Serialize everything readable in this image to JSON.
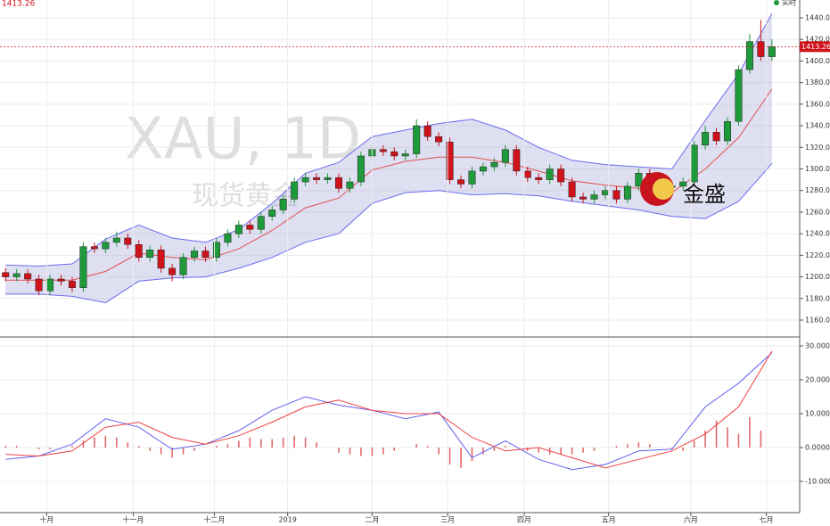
{
  "chart_data": [
    {
      "type": "candlestick",
      "title": "XAU, 1D",
      "subtitle": "现货黄金",
      "brand": "金盛",
      "status": "实时",
      "last_price": 1413.26,
      "last_price_label": "1413.26",
      "xlim": [
        -0.5,
        71.5
      ],
      "ylim": [
        1144.3,
        1456.5
      ],
      "yticks": [
        {
          "value": 1160,
          "label": "1160.00"
        },
        {
          "value": 1180,
          "label": "1180.00"
        },
        {
          "value": 1200,
          "label": "1200.00"
        },
        {
          "value": 1220,
          "label": "1220.00"
        },
        {
          "value": 1240,
          "label": "1240.00"
        },
        {
          "value": 1260,
          "label": "1260.00"
        },
        {
          "value": 1280,
          "label": "1280.00"
        },
        {
          "value": 1300,
          "label": "1300.00"
        },
        {
          "value": 1320,
          "label": "1320.00"
        },
        {
          "value": 1340,
          "label": "1340.00"
        },
        {
          "value": 1360,
          "label": "1360.00"
        },
        {
          "value": 1380,
          "label": "1380.00"
        },
        {
          "value": 1400,
          "label": "1400.00"
        },
        {
          "value": 1420,
          "label": "1420.00"
        },
        {
          "value": 1440,
          "label": "1440.00"
        }
      ],
      "grid": true,
      "up_color": "#1f9a3a",
      "down_color": "#d0121b",
      "band_color": "#6b6bf0",
      "band_fill": "#8c8cd2",
      "middle_color": "#e05050",
      "last_price_color": "#d0121b",
      "open": [
        1204,
        1200,
        1203,
        1198,
        1187,
        1198,
        1196,
        1190,
        1228,
        1226,
        1232,
        1236,
        1230,
        1218,
        1225,
        1208,
        1202,
        1218,
        1224,
        1218,
        1232,
        1240,
        1248,
        1244,
        1256,
        1262,
        1272,
        1288,
        1292,
        1290,
        1292,
        1282,
        1288,
        1312,
        1318,
        1316,
        1312,
        1314,
        1340,
        1330,
        1325,
        1290,
        1286,
        1298,
        1302,
        1306,
        1318,
        1298,
        1292,
        1290,
        1300,
        1288,
        1274,
        1272,
        1276,
        1280,
        1272,
        1284,
        1296,
        1286,
        1283,
        1284,
        1288,
        1322,
        1334,
        1326,
        1344,
        1392,
        1418,
        1404
      ],
      "high": [
        1208,
        1207,
        1207,
        1202,
        1202,
        1202,
        1200,
        1232,
        1232,
        1236,
        1242,
        1240,
        1234,
        1229,
        1229,
        1212,
        1222,
        1228,
        1228,
        1236,
        1244,
        1252,
        1252,
        1260,
        1266,
        1276,
        1292,
        1296,
        1296,
        1296,
        1296,
        1292,
        1316,
        1324,
        1322,
        1320,
        1318,
        1346,
        1344,
        1334,
        1329,
        1294,
        1302,
        1306,
        1310,
        1322,
        1322,
        1302,
        1296,
        1304,
        1304,
        1292,
        1278,
        1280,
        1284,
        1284,
        1288,
        1300,
        1300,
        1290,
        1288,
        1292,
        1326,
        1340,
        1338,
        1348,
        1396,
        1425,
        1438,
        1420
      ],
      "low": [
        1196,
        1196,
        1194,
        1183,
        1183,
        1192,
        1186,
        1186,
        1222,
        1222,
        1228,
        1226,
        1214,
        1214,
        1204,
        1196,
        1198,
        1214,
        1214,
        1214,
        1228,
        1236,
        1240,
        1240,
        1252,
        1258,
        1268,
        1284,
        1286,
        1286,
        1278,
        1278,
        1284,
        1308,
        1312,
        1308,
        1308,
        1310,
        1326,
        1321,
        1286,
        1282,
        1282,
        1294,
        1298,
        1302,
        1294,
        1288,
        1286,
        1286,
        1284,
        1270,
        1268,
        1268,
        1272,
        1268,
        1268,
        1280,
        1282,
        1279,
        1279,
        1280,
        1284,
        1318,
        1322,
        1322,
        1340,
        1388,
        1400,
        1400
      ],
      "close": [
        1200,
        1203,
        1198,
        1187,
        1198,
        1196,
        1190,
        1228,
        1226,
        1232,
        1236,
        1230,
        1218,
        1225,
        1208,
        1202,
        1218,
        1224,
        1218,
        1232,
        1240,
        1248,
        1244,
        1256,
        1262,
        1272,
        1288,
        1292,
        1290,
        1292,
        1282,
        1288,
        1312,
        1318,
        1316,
        1312,
        1314,
        1340,
        1330,
        1325,
        1290,
        1286,
        1298,
        1302,
        1306,
        1318,
        1298,
        1292,
        1290,
        1300,
        1288,
        1274,
        1272,
        1276,
        1280,
        1272,
        1284,
        1296,
        1286,
        1283,
        1284,
        1288,
        1322,
        1334,
        1326,
        1344,
        1392,
        1418,
        1404,
        1413.26
      ],
      "band_x": [
        0,
        3,
        6,
        9,
        12,
        15,
        18,
        21,
        24,
        27,
        30,
        33,
        36,
        39,
        42,
        45,
        48,
        51,
        54,
        57,
        60,
        63,
        66,
        69
      ],
      "band_upper": [
        1211,
        1210,
        1212,
        1235,
        1248,
        1236,
        1232,
        1244,
        1268,
        1296,
        1306,
        1330,
        1336,
        1342,
        1346,
        1336,
        1320,
        1308,
        1304,
        1302,
        1300,
        1345,
        1388,
        1444
      ],
      "band_middle": [
        1197,
        1197,
        1197,
        1205,
        1222,
        1218,
        1216,
        1226,
        1243,
        1264,
        1273,
        1299,
        1307,
        1311,
        1311,
        1306,
        1298,
        1289,
        1285,
        1282,
        1278,
        1300,
        1329,
        1374
      ],
      "band_lower": [
        1184,
        1184,
        1182,
        1176,
        1196,
        1199,
        1200,
        1208,
        1218,
        1232,
        1240,
        1268,
        1278,
        1280,
        1276,
        1277,
        1275,
        1270,
        1266,
        1262,
        1256,
        1254,
        1270,
        1305
      ]
    },
    {
      "type": "macd",
      "xlim": [
        -0.5,
        71.5
      ],
      "ylim": [
        -19.2,
        32.1
      ],
      "yticks": [
        {
          "value": 30,
          "label": "30.0000"
        },
        {
          "value": 20,
          "label": "20.0000"
        },
        {
          "value": 10,
          "label": "10.0000"
        },
        {
          "value": 0,
          "label": "0.0000"
        },
        {
          "value": -10,
          "label": "-10.0000"
        }
      ],
      "xticks": [
        {
          "value": 3.7,
          "label": "十月"
        },
        {
          "value": 11.5,
          "label": "十一月"
        },
        {
          "value": 18.8,
          "label": "十二月"
        },
        {
          "value": 25.4,
          "label": "2019"
        },
        {
          "value": 33,
          "label": "二月"
        },
        {
          "value": 39.8,
          "label": "三月"
        },
        {
          "value": 46.7,
          "label": "四月"
        },
        {
          "value": 54.3,
          "label": "五月"
        },
        {
          "value": 61.7,
          "label": "六月"
        },
        {
          "value": 68.5,
          "label": "七月"
        }
      ],
      "grid": true,
      "macd_color": "#6060f0",
      "signal_color": "#f04040",
      "histogram_color": "#e06060",
      "x": [
        0,
        3,
        6,
        9,
        12,
        15,
        18,
        21,
        24,
        27,
        30,
        33,
        36,
        39,
        42,
        45,
        48,
        51,
        54,
        57,
        60,
        63,
        66,
        69
      ],
      "macd": [
        -3.5,
        -2.5,
        1,
        8.5,
        6,
        -0.5,
        1,
        5,
        11,
        15,
        12.5,
        11,
        8.5,
        10.5,
        -3,
        2,
        -3.5,
        -6.5,
        -5,
        -1,
        -0.5,
        12,
        19,
        28
      ],
      "signal": [
        -2,
        -2.5,
        -1,
        6,
        7.5,
        3,
        1,
        3.5,
        7.5,
        12,
        14,
        11,
        10,
        10,
        3,
        -1,
        0,
        -3,
        -6,
        -3.5,
        -1,
        4,
        12,
        28.5
      ],
      "histogram": [
        0.5,
        0.5,
        0,
        -0.5,
        -0.5,
        0,
        0.5,
        2,
        3,
        3.5,
        3,
        1.5,
        0.5,
        -1,
        -2,
        -3,
        -2,
        -1,
        0,
        0.5,
        1,
        2,
        3,
        2.5,
        2.5,
        3,
        3.5,
        3,
        1.5,
        0,
        -1.5,
        -2,
        -2.5,
        -2.5,
        -2,
        -1,
        0,
        1,
        0.5,
        -2,
        -5,
        -6,
        -4,
        -2,
        -1,
        0.5,
        0,
        -1,
        -1.5,
        -2,
        -2,
        -2,
        -1.5,
        -1,
        0,
        0.5,
        1,
        1.5,
        1,
        0,
        -0.5,
        -1,
        2,
        5,
        8,
        6,
        4,
        9,
        5,
        0
      ]
    }
  ]
}
